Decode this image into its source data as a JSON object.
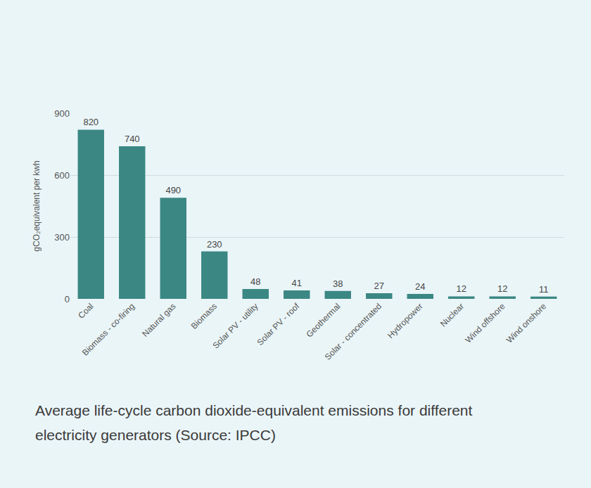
{
  "chart_data": {
    "type": "bar",
    "title": "Average life-cycle carbon dioxide-equivalent emissions for different electricity generators (Source: IPCC)",
    "y_label": "gCO₂equivalent per kwh",
    "categories": [
      "Coal",
      "Biomass - co-firing",
      "Natural gas",
      "Biomass",
      "Solar PV - utility",
      "Solar PV - roof",
      "Geothermal",
      "Solar - concentrated",
      "Hydropower",
      "Nuclear",
      "Wind offshore",
      "Wind onshore"
    ],
    "values": [
      820,
      740,
      490,
      230,
      48,
      41,
      38,
      27,
      24,
      12,
      12,
      11
    ],
    "color": "#3b8784",
    "ylim": [
      0,
      900
    ],
    "yticks": [
      0,
      300,
      600,
      900
    ],
    "grid": true,
    "data_labels": true
  }
}
